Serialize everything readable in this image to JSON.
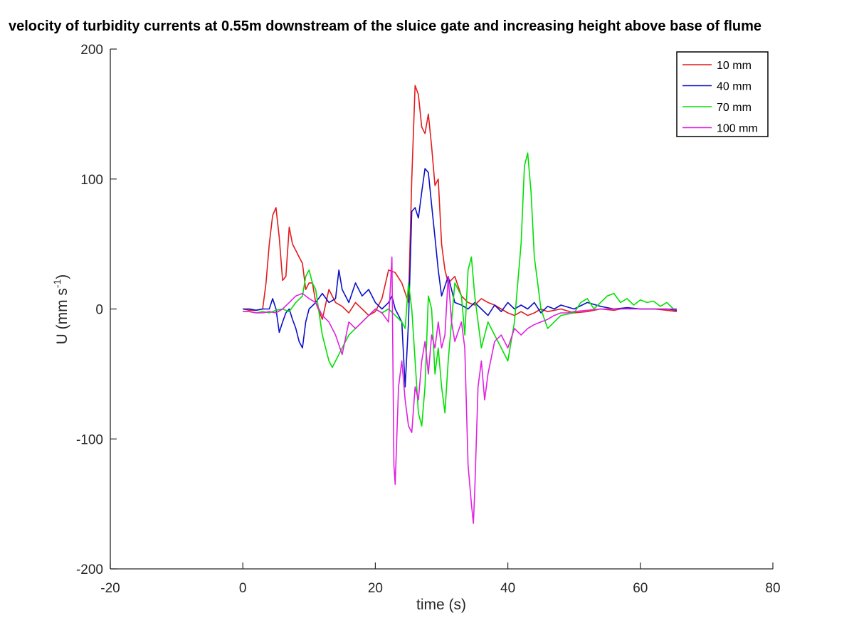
{
  "chart_data": {
    "type": "line",
    "title": "velocity of turbidity currents at 0.55m downstream of the sluice gate and increasing height above base of flume",
    "xlabel": "time (s)",
    "ylabel": "U (mm s",
    "ylabel_sup": "-1",
    "ylabel_close": ")",
    "xlim": [
      -20,
      80
    ],
    "ylim": [
      -200,
      200
    ],
    "xticks": [
      -20,
      0,
      20,
      40,
      60,
      80
    ],
    "yticks": [
      -200,
      -100,
      0,
      100,
      200
    ],
    "xtick_labels": [
      "-20",
      "0",
      "20",
      "40",
      "60",
      "80"
    ],
    "ytick_labels": [
      "-200",
      "-100",
      "0",
      "100",
      "200"
    ],
    "grid": false,
    "legend_position": "top-right",
    "series": [
      {
        "name": "10 mm",
        "color": "#e41a1c",
        "x": [
          0,
          1,
          2,
          3,
          3.5,
          4,
          4.5,
          5,
          5.5,
          6,
          6.5,
          7,
          7.5,
          8,
          8.5,
          9,
          9.5,
          10,
          10.5,
          11,
          12,
          13,
          14,
          15,
          16,
          17,
          18,
          19,
          20,
          21,
          22,
          23,
          24,
          25,
          25.5,
          26,
          26.5,
          27,
          27.5,
          28,
          28.5,
          29,
          29.5,
          30,
          30.5,
          31,
          32,
          33,
          34,
          35,
          36,
          37,
          38,
          39,
          40,
          41,
          42,
          43,
          44,
          45,
          46,
          48,
          50,
          52,
          54,
          56,
          58,
          60,
          62,
          64,
          65.5
        ],
        "y": [
          0,
          -1,
          -1,
          0,
          20,
          50,
          72,
          78,
          55,
          22,
          25,
          63,
          50,
          45,
          40,
          35,
          15,
          20,
          20,
          5,
          -8,
          15,
          5,
          2,
          -3,
          5,
          0,
          -5,
          -2,
          8,
          30,
          28,
          20,
          5,
          100,
          172,
          165,
          140,
          135,
          150,
          125,
          95,
          100,
          50,
          30,
          20,
          25,
          10,
          5,
          3,
          8,
          5,
          3,
          0,
          -3,
          -5,
          -2,
          -5,
          -3,
          0,
          -2,
          0,
          -3,
          -2,
          0,
          -1,
          1,
          0,
          0,
          -1,
          -2
        ]
      },
      {
        "name": "40 mm",
        "color": "#0a10c8",
        "x": [
          0,
          1,
          2,
          3,
          4,
          4.5,
          5,
          5.5,
          6,
          6.5,
          7,
          7.5,
          8,
          8.5,
          9,
          9.5,
          10,
          11,
          12,
          13,
          14,
          14.5,
          15,
          16,
          17,
          18,
          19,
          20,
          21,
          22,
          22.5,
          23,
          23.5,
          24,
          24.5,
          25,
          25.5,
          26,
          26.5,
          27,
          27.5,
          28,
          28.5,
          29,
          29.5,
          30,
          31,
          32,
          33,
          34,
          35,
          36,
          37,
          38,
          39,
          40,
          41,
          42,
          43,
          44,
          45,
          46,
          47,
          48,
          50,
          52,
          54,
          56,
          58,
          60,
          62,
          64,
          65.5
        ],
        "y": [
          0,
          0,
          -1,
          0,
          0,
          8,
          0,
          -18,
          -10,
          -3,
          0,
          -8,
          -15,
          -25,
          -30,
          -10,
          0,
          5,
          12,
          5,
          8,
          30,
          15,
          5,
          20,
          10,
          15,
          5,
          0,
          5,
          10,
          0,
          -5,
          -10,
          -60,
          -10,
          75,
          78,
          70,
          90,
          108,
          105,
          80,
          55,
          30,
          10,
          25,
          5,
          3,
          0,
          5,
          0,
          -5,
          3,
          -2,
          5,
          0,
          3,
          0,
          5,
          -3,
          2,
          0,
          3,
          0,
          5,
          2,
          0,
          1,
          0,
          0,
          0,
          -1
        ]
      },
      {
        "name": "70 mm",
        "color": "#00e000",
        "x": [
          0,
          1,
          2,
          3,
          4,
          5,
          6,
          7,
          8,
          9,
          9.5,
          10,
          10.5,
          11,
          12,
          13,
          13.5,
          14,
          14.5,
          15,
          16,
          17,
          18,
          19,
          20,
          21,
          22,
          23,
          24,
          24.5,
          25,
          25.5,
          26,
          26.5,
          27,
          27.5,
          28,
          28.5,
          29,
          29.5,
          30,
          30.5,
          31,
          32,
          33,
          33.5,
          34,
          34.5,
          35,
          36,
          37,
          38,
          39,
          40,
          41,
          42,
          42.5,
          43,
          43.5,
          44,
          44.5,
          45,
          46,
          47,
          48,
          50,
          51,
          52,
          53,
          54,
          55,
          56,
          57,
          58,
          59,
          60,
          61,
          62,
          63,
          64,
          65,
          65.5
        ],
        "y": [
          -2,
          -2,
          -3,
          -2,
          -3,
          -1,
          0,
          -2,
          5,
          10,
          25,
          30,
          20,
          15,
          -20,
          -40,
          -45,
          -40,
          -35,
          -30,
          -20,
          -15,
          -10,
          -5,
          0,
          -3,
          0,
          -5,
          -10,
          -15,
          20,
          0,
          -40,
          -80,
          -90,
          -60,
          10,
          0,
          -50,
          -30,
          -60,
          -80,
          -40,
          20,
          10,
          -20,
          30,
          40,
          10,
          -30,
          -10,
          -20,
          -30,
          -40,
          -10,
          50,
          110,
          120,
          90,
          40,
          20,
          0,
          -15,
          -10,
          -5,
          -3,
          5,
          8,
          0,
          5,
          10,
          12,
          5,
          8,
          3,
          7,
          5,
          6,
          2,
          5,
          0,
          0
        ]
      },
      {
        "name": "100 mm",
        "color": "#e020e0",
        "x": [
          0,
          1,
          2,
          3,
          4,
          5,
          6,
          7,
          8,
          9,
          10,
          11,
          12,
          13,
          14,
          15,
          16,
          17,
          18,
          19,
          20,
          21,
          22,
          22.5,
          22.8,
          23,
          23.5,
          24,
          24.5,
          25,
          25.5,
          26,
          26.5,
          27,
          27.5,
          28,
          28.5,
          29,
          29.5,
          30,
          30.5,
          31,
          31.5,
          32,
          33,
          33.5,
          34,
          34.5,
          34.8,
          35,
          35.5,
          36,
          36.5,
          37,
          38,
          39,
          40,
          41,
          42,
          43,
          44,
          45,
          46,
          47,
          48,
          49,
          50,
          52,
          54,
          56,
          58,
          60,
          62,
          64,
          65.5
        ],
        "y": [
          -2,
          -2,
          -3,
          -3,
          -2,
          -3,
          0,
          5,
          10,
          12,
          8,
          5,
          -5,
          -10,
          -20,
          -35,
          -10,
          -15,
          -10,
          -5,
          0,
          -3,
          -10,
          40,
          -120,
          -135,
          -60,
          -40,
          -70,
          -90,
          -95,
          -60,
          -70,
          -40,
          -25,
          -50,
          -20,
          -30,
          -10,
          -30,
          -20,
          25,
          -10,
          -25,
          -10,
          -30,
          -120,
          -150,
          -165,
          -140,
          -60,
          -40,
          -70,
          -50,
          -25,
          -20,
          -30,
          -15,
          -20,
          -15,
          -12,
          -10,
          -8,
          -5,
          -3,
          -3,
          -2,
          -1,
          0,
          0,
          0,
          0,
          0,
          0,
          0
        ]
      }
    ]
  }
}
